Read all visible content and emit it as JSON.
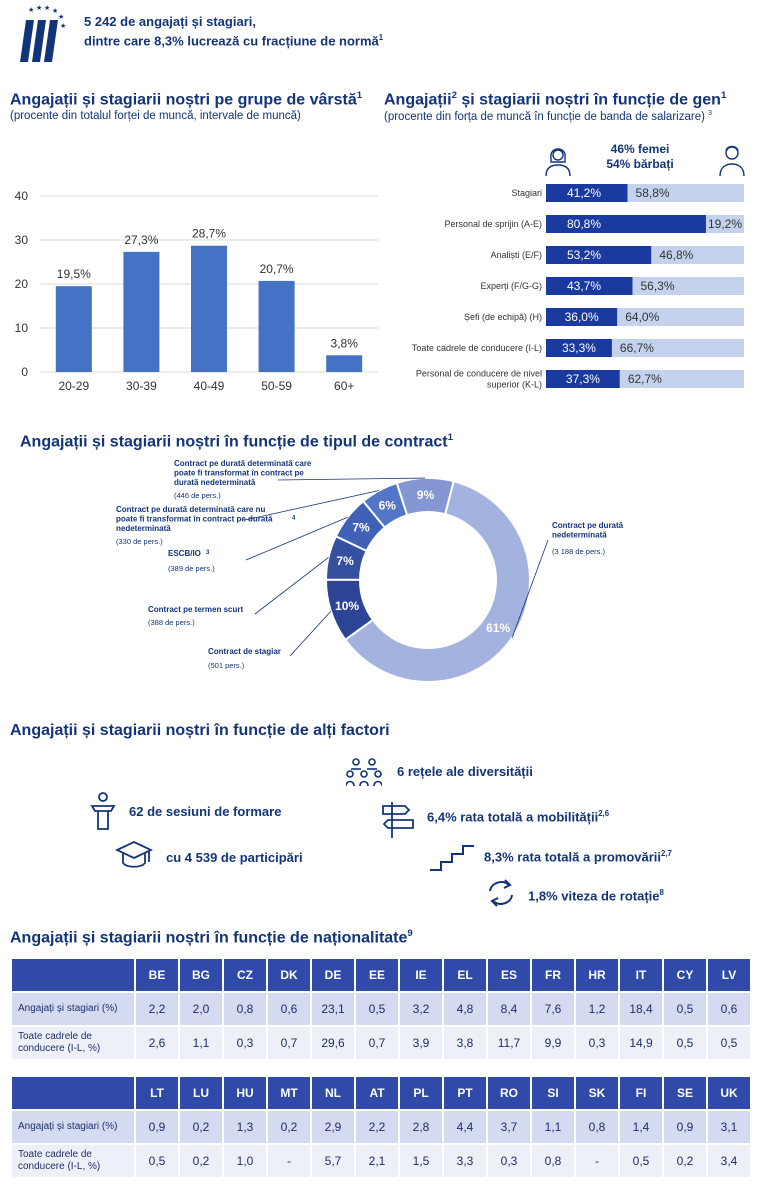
{
  "header": {
    "line1": "5 242 de angajați și stagiari,",
    "line2": "dintre care 8,3% lucrează cu fracțiune de normă",
    "line2_sup": "1"
  },
  "age_section": {
    "title": "Angajații  și stagiarii  noștri pe grupe de vârstă",
    "title_sup": "1",
    "subtitle": "(procente din totalul forței de muncă, intervale de muncă)"
  },
  "gender_section": {
    "title_a": "Angajații",
    "title_sup_a": "2",
    "title_b": "  și stagiarii  noștri în funcție de gen",
    "title_sup_b": "1",
    "subtitle": "(procente din forța de muncă în funcție de banda de salarizare)",
    "subtitle_sup": "3",
    "women_label": "46% femei",
    "men_label": "54% bărbați"
  },
  "contract_section": {
    "title": "Angajații  și stagiarii  noștri în funcție de tipul de contract",
    "title_sup": "1"
  },
  "other_section": {
    "title": "Angajații  și stagiarii  noștri în funcție de alți factori",
    "items": {
      "networks": "6 rețele ale diversității",
      "training": "62 de sesiuni de formare",
      "mobility": "6,4% rata totală a mobilității",
      "mobility_sup": "2,6",
      "participants": "cu 4 539 de participări",
      "promotion": "8,3% rata totală a promovării",
      "promotion_sup": "2,7",
      "turnover": "1,8% viteza de rotație",
      "turnover_sup": "8"
    },
    "icons": [
      "people-group-icon",
      "trainer-podium-icon",
      "signpost-icon",
      "graduation-cap-icon",
      "stairs-icon",
      "rotation-arrows-icon"
    ]
  },
  "nationality_section": {
    "title": "Angajații și stagiarii noștri în funcție de naționalitate",
    "title_sup": "9",
    "row_labels": [
      "Angajați și stagiari (%)",
      "Toate cadrele de conducere (I-L, %)"
    ],
    "row_labels2": [
      "Angajați și stagiari (%)",
      "Toate cadrele de conducere (I-L, %)"
    ],
    "table1": {
      "countries": [
        "BE",
        "BG",
        "CZ",
        "DK",
        "DE",
        "EE",
        "IE",
        "EL",
        "ES",
        "FR",
        "HR",
        "IT",
        "CY",
        "LV"
      ],
      "staff": [
        "2,2",
        "2,0",
        "0,8",
        "0,6",
        "23,1",
        "0,5",
        "3,2",
        "4,8",
        "8,4",
        "7,6",
        "1,2",
        "18,4",
        "0,5",
        "0,6"
      ],
      "managers": [
        "2,6",
        "1,1",
        "0,3",
        "0,7",
        "29,6",
        "0,7",
        "3,9",
        "3,8",
        "11,7",
        "9,9",
        "0,3",
        "14,9",
        "0,5",
        "0,5"
      ]
    },
    "table2": {
      "countries": [
        "LT",
        "LU",
        "HU",
        "MT",
        "NL",
        "AT",
        "PL",
        "PT",
        "RO",
        "SI",
        "SK",
        "FI",
        "SE",
        "UK"
      ],
      "staff": [
        "0,9",
        "0,2",
        "1,3",
        "0,2",
        "2,9",
        "2,2",
        "2,8",
        "4,4",
        "3,7",
        "1,1",
        "0,8",
        "1,4",
        "0,9",
        "3,1"
      ],
      "managers": [
        "0,5",
        "0,2",
        "1,0",
        "-",
        "5,7",
        "2,1",
        "1,5",
        "3,3",
        "0,3",
        "0,8",
        "-",
        "0,5",
        "0,2",
        "3,4"
      ]
    }
  },
  "colors": {
    "dark_blue": "#14347a",
    "bar_blue": "#4472c4",
    "gender_dark": "#1b3aa0",
    "gender_light": "#c5d2ee"
  },
  "chart_data": [
    {
      "type": "bar",
      "categories": [
        "20-29",
        "30-39",
        "40-49",
        "50-59",
        "60+"
      ],
      "values": [
        19.5,
        27.3,
        28.7,
        20.7,
        3.8
      ],
      "value_labels": [
        "19,5%",
        "27,3%",
        "28,7%",
        "20,7%",
        "3,8%"
      ],
      "yticks": [
        "0",
        "10",
        "20",
        "30",
        "40"
      ],
      "ylim": [
        0,
        40
      ],
      "grid": true
    },
    {
      "type": "bar",
      "orientation": "horizontal-stacked",
      "categories": [
        "Stagiari",
        "Personal de sprijin (A-E)",
        "Analiști (E/F)",
        "Experți (F/G-G)",
        "Șefi (de echipă) (H)",
        "Toate cadrele de conducere (I-L)",
        "Personal de conducere de nivel superior (K-L)"
      ],
      "women": [
        41.2,
        80.8,
        53.2,
        43.7,
        36.0,
        33.3,
        37.3
      ],
      "men": [
        58.8,
        19.2,
        46.8,
        56.3,
        64.0,
        66.7,
        62.7
      ],
      "women_labels": [
        "41,2%",
        "80,8%",
        "53,2%",
        "43,7%",
        "36,0%",
        "33,3%",
        "37,3%"
      ],
      "men_labels": [
        "58,8%",
        "19,2%",
        "46,8%",
        "56,3%",
        "64,0%",
        "66,7%",
        "62,7%"
      ]
    },
    {
      "type": "pie",
      "donut": true,
      "slices": [
        {
          "label": "Contract pe durată nedeterminată",
          "count": "(3 188 de pers.)",
          "value": 61,
          "value_label": "61%",
          "color": "#a3b2df"
        },
        {
          "label": "Contract de stagiar",
          "count": "(501 pers.)",
          "value": 10,
          "value_label": "10%",
          "color": "#2d4494"
        },
        {
          "label": "Contract pe termen scurt",
          "count": "(388 de pers.)",
          "value": 7,
          "value_label": "7%",
          "color": "#34509f"
        },
        {
          "label": "ESCB/IO",
          "label_sup": "3",
          "count": "(389 de pers.)",
          "value": 7,
          "value_label": "7%",
          "color": "#3f62b8"
        },
        {
          "label": "Contract pe durată determinată care nu poate fi transformat în contract pe durată nedeterminată",
          "label_sup": "4",
          "count": "(330 de pers.)",
          "value": 6,
          "value_label": "6%",
          "color": "#5476c8"
        },
        {
          "label": "Contract pe durată determinată care poate fi transformat în contract pe durată nedeterminată",
          "count": "(446 de pers.)",
          "value": 9,
          "value_label": "9%",
          "color": "#8597d3"
        }
      ]
    }
  ]
}
